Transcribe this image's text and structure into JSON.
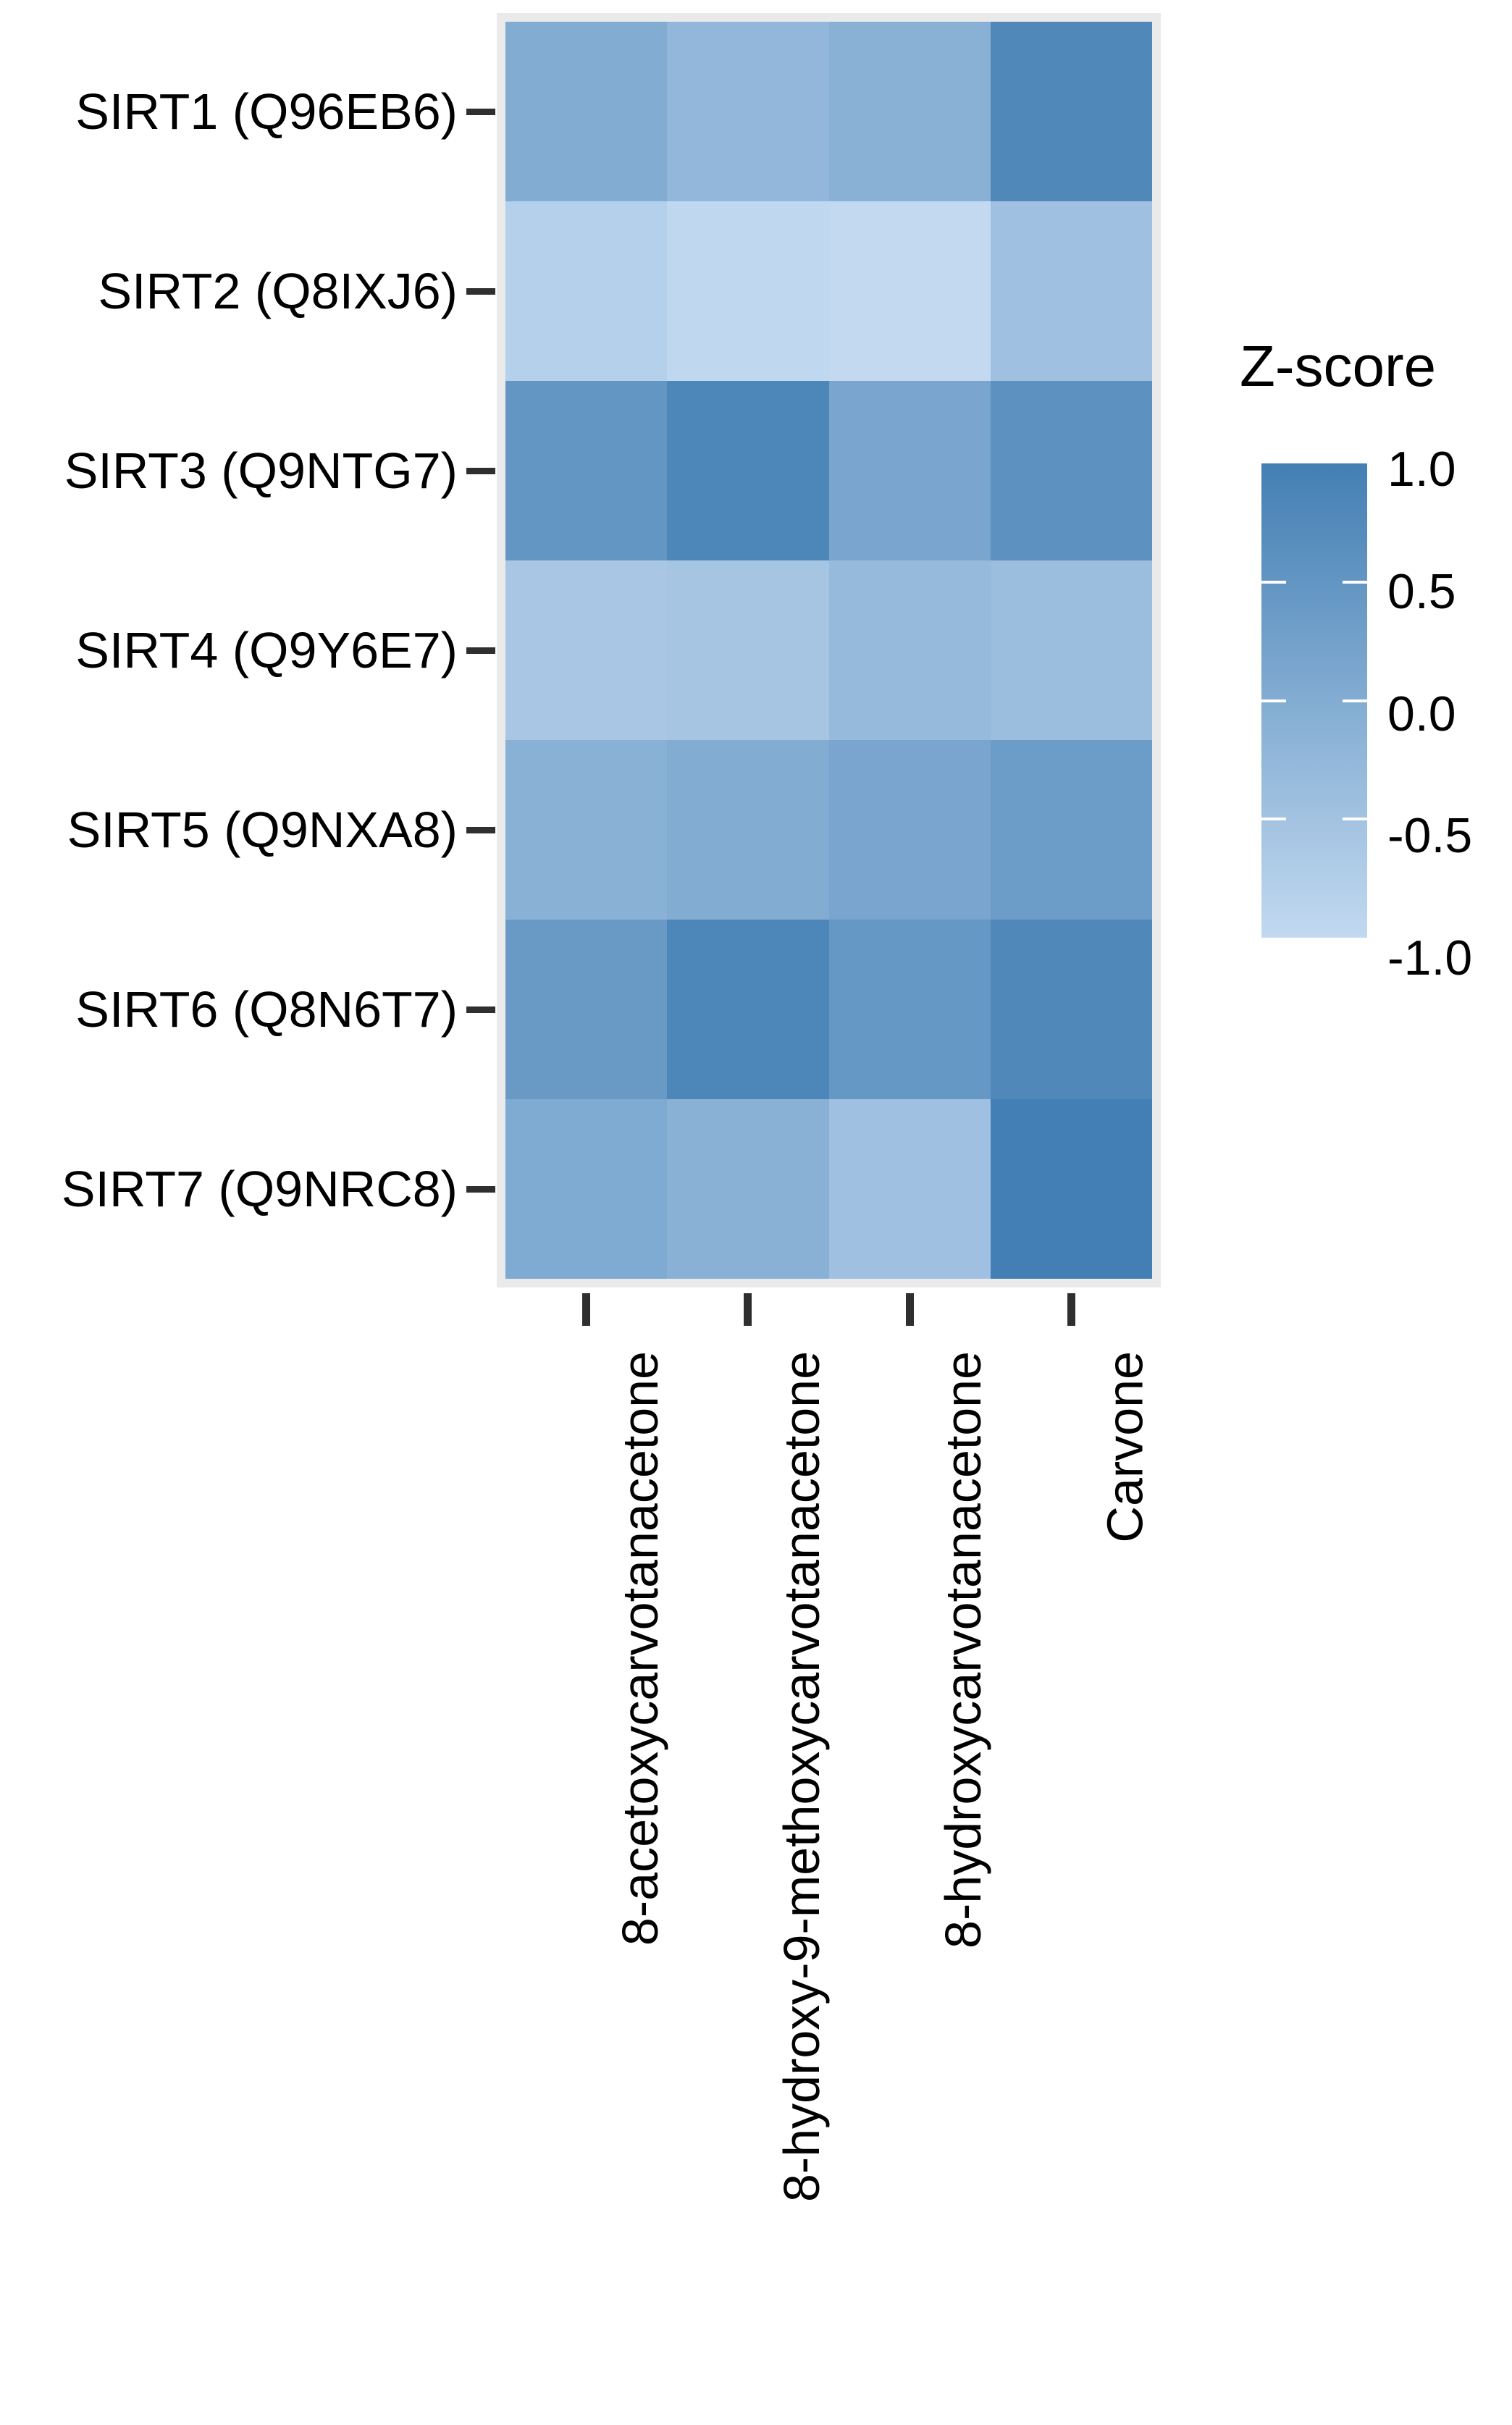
{
  "legend": {
    "title": "Z-score",
    "tick_labels": [
      "1.0",
      "0.5",
      "0.0",
      "-0.5",
      "-1.0"
    ]
  },
  "colors": {
    "scale_high": "#437fb4",
    "scale_low": "#c2d9f0",
    "panel_background": "#eaeaea",
    "axis_tick": "#2f2f2f",
    "text": "#000000",
    "legend_tick_mark": "#ffffff"
  },
  "chart_data": {
    "type": "heatmap",
    "title": "",
    "legend_title": "Z-score",
    "legend_position": "right",
    "rows": [
      "SIRT1 (Q96EB6)",
      "SIRT2 (Q8IXJ6)",
      "SIRT3 (Q9NTG7)",
      "SIRT4 (Q9Y6E7)",
      "SIRT5 (Q9NXA8)",
      "SIRT6 (Q8N6T7)",
      "SIRT7 (Q9NRC8)"
    ],
    "columns": [
      "8-acetoxycarvotanacetone",
      "8-hydroxy-9-methoxycarvotanacetone",
      "8-hydroxycarvotanacetone",
      "Carvone"
    ],
    "zlim": [
      -1.0,
      1.0
    ],
    "legend_tick_values": [
      1.0,
      0.5,
      0.0,
      -0.5,
      -1.0
    ],
    "z_values": [
      [
        0.0,
        -0.25,
        -0.1,
        0.8
      ],
      [
        -0.8,
        -0.95,
        -1.0,
        -0.45
      ],
      [
        0.5,
        0.85,
        0.15,
        0.6
      ],
      [
        -0.6,
        -0.55,
        -0.3,
        -0.4
      ],
      [
        -0.1,
        0.0,
        0.15,
        0.35
      ],
      [
        0.4,
        0.85,
        0.45,
        0.8
      ],
      [
        0.05,
        -0.1,
        -0.45,
        1.0
      ]
    ]
  }
}
